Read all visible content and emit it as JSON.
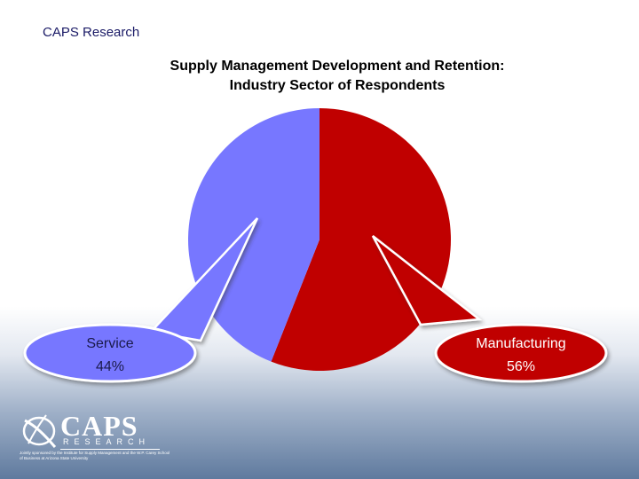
{
  "header": {
    "org": "CAPS Research"
  },
  "chart_data": {
    "type": "pie",
    "title_lines": [
      "Supply Management Development and Retention:",
      "Industry Sector of Respondents"
    ],
    "slices": [
      {
        "label": "Manufacturing",
        "value": 56,
        "value_label": "56%",
        "color": "#c00000"
      },
      {
        "label": "Service",
        "value": 44,
        "value_label": "44%",
        "color": "#7777ff"
      }
    ]
  },
  "logo": {
    "wordmark": "CAPS",
    "subtext": "RESEARCH",
    "fine_print": "Jointly sponsored by the Institute for Supply Management and the W.P. Carey School of Business at Arizona State University"
  }
}
